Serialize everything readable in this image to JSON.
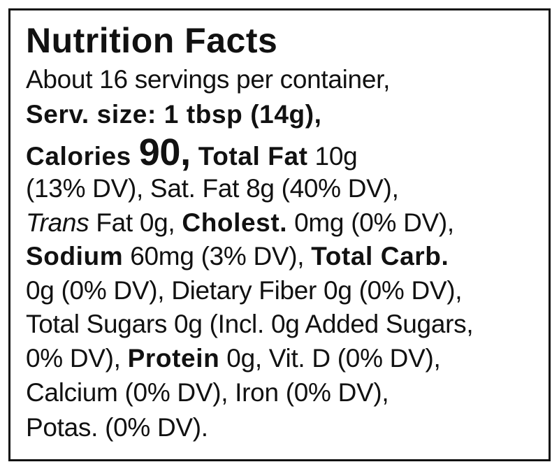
{
  "title": "Nutrition Facts",
  "lines": [
    [
      "About 16 servings per container,"
    ],
    [
      "Serv. size: 1 tbsp (14g),"
    ],
    [
      "Calories ",
      "90,",
      " Total Fat",
      " 10g"
    ],
    [
      "(13% DV), Sat. Fat 8g (40% DV),"
    ],
    [
      "Trans",
      " Fat 0g, ",
      "Cholest.",
      " 0mg (0% DV),"
    ],
    [
      "Sodium",
      " 60mg (3% DV), ",
      "Total Carb."
    ],
    [
      "0g (0% DV), Dietary Fiber 0g (0% DV),"
    ],
    [
      "Total Sugars 0g (Incl. 0g Added Sugars,"
    ],
    [
      "0% DV), ",
      "Protein",
      " 0g, Vit. D (0% DV),"
    ],
    [
      "Calcium (0% DV), Iron (0% DV),"
    ],
    [
      "Potas. (0% DV)."
    ]
  ]
}
